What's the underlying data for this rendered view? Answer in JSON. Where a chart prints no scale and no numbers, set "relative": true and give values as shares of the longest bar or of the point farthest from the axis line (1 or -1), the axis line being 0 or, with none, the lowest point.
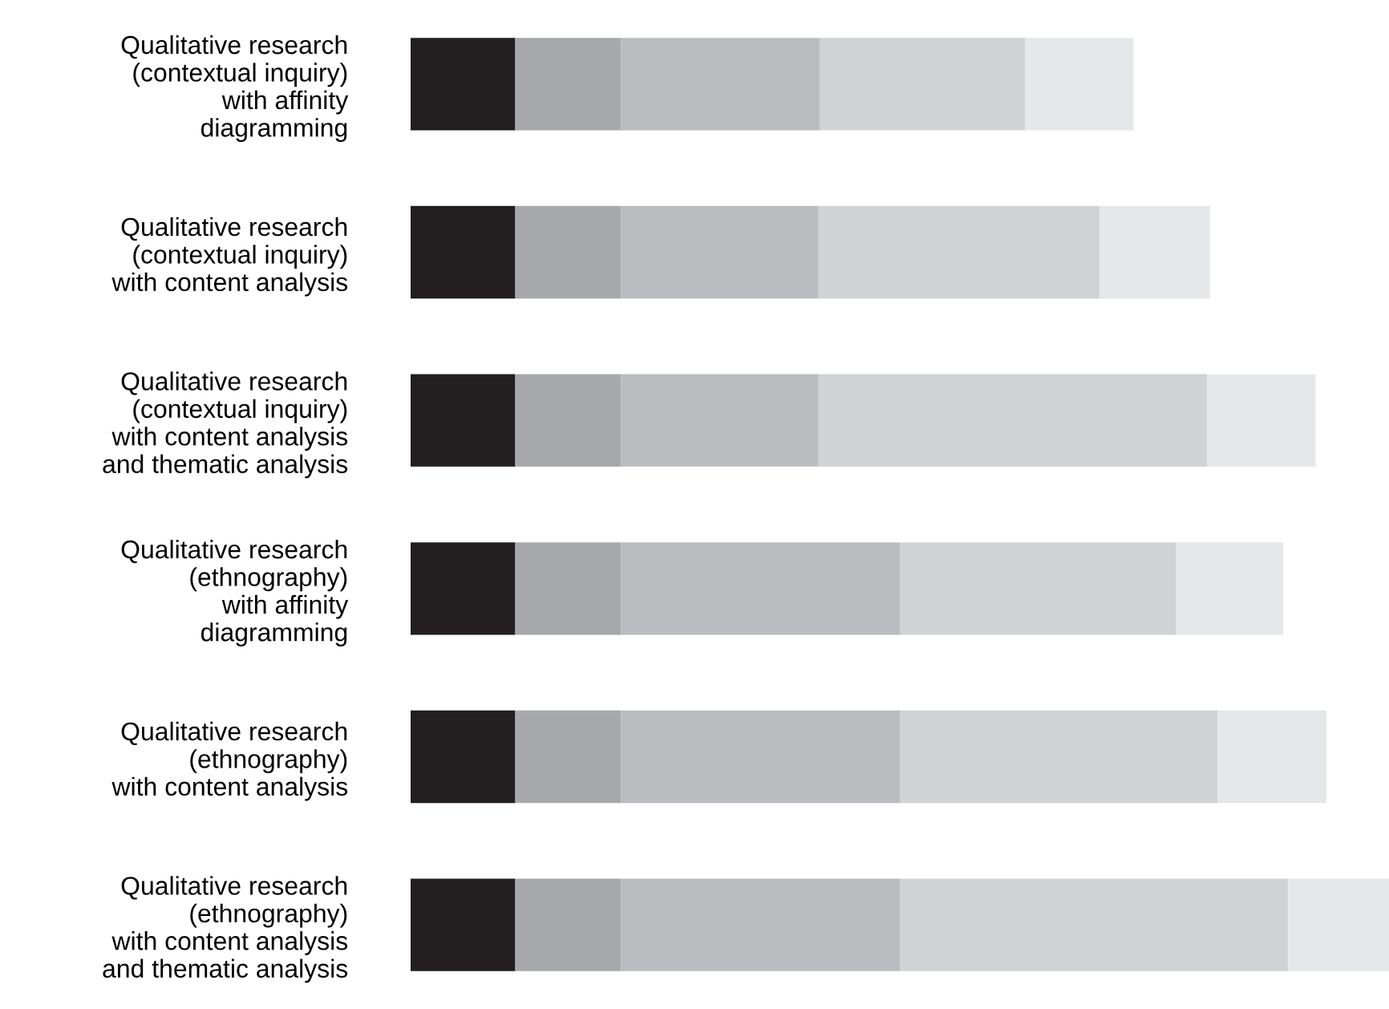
{
  "chart_data": {
    "type": "bar",
    "orientation": "horizontal",
    "stacked": true,
    "relative": true,
    "legend": false,
    "grid": false,
    "categories": [
      "Qualitative research\n(contextual inquiry)\nwith affinity\ndiagramming",
      "Qualitative research\n(contextual inquiry)\nwith content analysis",
      "Qualitative research\n(contextual inquiry)\nwith content analysis\nand thematic analysis",
      "Qualitative research\n(ethnography)\nwith affinity\ndiagramming",
      "Qualitative research\n(ethnography)\nwith content analysis",
      "Qualitative research\n(ethnography)\nwith content analysis\nand thematic analysis"
    ],
    "series": [
      {
        "color": "#231f20",
        "values": [
          0.107,
          0.107,
          0.107,
          0.107,
          0.107,
          0.107
        ]
      },
      {
        "color": "#a7a8aa",
        "values": [
          0.108,
          0.108,
          0.108,
          0.108,
          0.108,
          0.108
        ]
      },
      {
        "color": "#bbbcbf",
        "values": [
          0.203,
          0.202,
          0.202,
          0.285,
          0.285,
          0.285
        ]
      },
      {
        "color": "#d1d2d4",
        "values": [
          0.21,
          0.287,
          0.397,
          0.282,
          0.325,
          0.397
        ]
      },
      {
        "color": "#e6e7e8",
        "values": [
          0.111,
          0.113,
          0.111,
          0.11,
          0.111,
          0.103
        ]
      }
    ]
  }
}
